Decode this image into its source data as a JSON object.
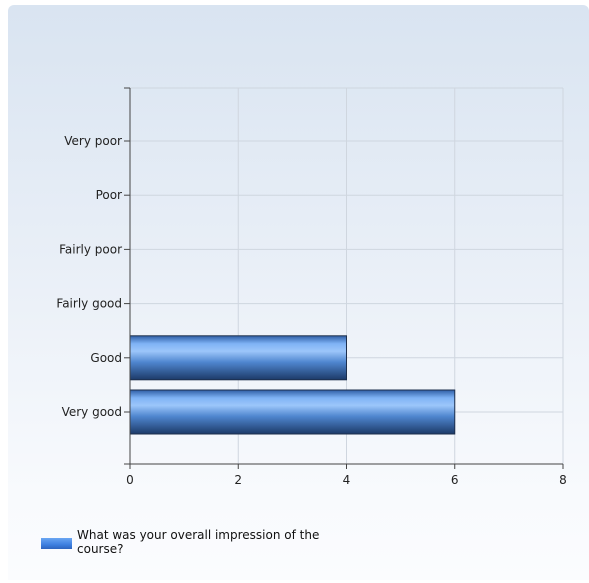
{
  "chart_data": {
    "type": "bar",
    "orientation": "horizontal",
    "categories": [
      "Very poor",
      "Poor",
      "Fairly poor",
      "Fairly good",
      "Good",
      "Very good"
    ],
    "series": [
      {
        "name": "What was your overall impression of the course?",
        "values": [
          0,
          0,
          0,
          0,
          4,
          6
        ]
      }
    ],
    "x_ticks": [
      "0",
      "2",
      "4",
      "6",
      "8"
    ],
    "xlim": [
      0,
      8
    ],
    "title": "",
    "xlabel": "",
    "ylabel": "",
    "grid": true,
    "legend_position": "bottom-left",
    "colors": {
      "bar_light": "#8fc0f8",
      "bar_mid": "#4d8be0",
      "bar_dark": "#1f3d6e",
      "grid": "#cfd6df",
      "axis": "#444444"
    }
  }
}
